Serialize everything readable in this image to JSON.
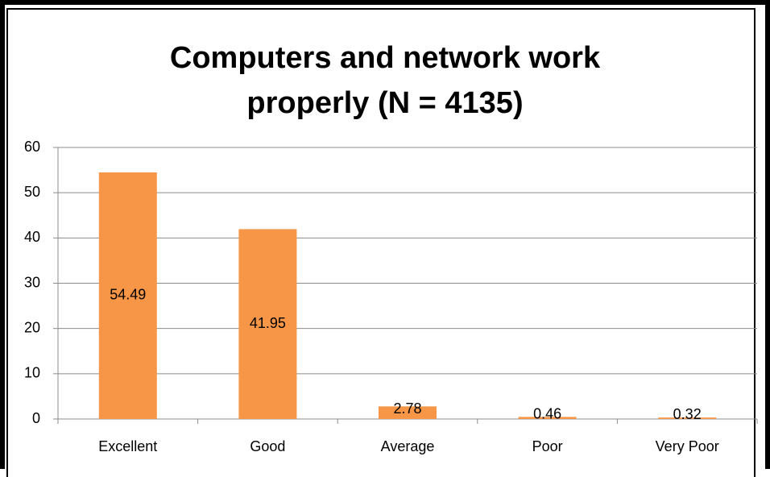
{
  "chart_data": {
    "type": "bar",
    "title": "Computers and network work properly (N = 4135)",
    "categories": [
      "Excellent",
      "Good",
      "Average",
      "Poor",
      "Very Poor"
    ],
    "values": [
      54.49,
      41.95,
      2.78,
      0.46,
      0.32
    ],
    "color": "#f79646",
    "ylim": [
      0,
      60
    ],
    "yticks": [
      0,
      10,
      20,
      30,
      40,
      50,
      60
    ],
    "grid": true
  }
}
